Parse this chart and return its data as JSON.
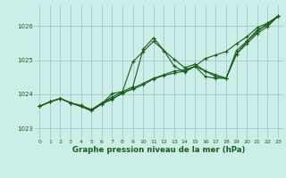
{
  "title": "Graphe pression niveau de la mer (hPa)",
  "bg_color": "#cceee8",
  "grid_color": "#aacccc",
  "line_color": "#1a5c1a",
  "xlim": [
    -0.5,
    23.5
  ],
  "ylim": [
    1022.7,
    1026.6
  ],
  "yticks": [
    1023,
    1024,
    1025,
    1026
  ],
  "xticks": [
    0,
    1,
    2,
    3,
    4,
    5,
    6,
    7,
    8,
    9,
    10,
    11,
    12,
    13,
    14,
    15,
    16,
    17,
    18,
    19,
    20,
    21,
    22,
    23
  ],
  "series": [
    [
      1023.65,
      1023.78,
      1023.88,
      1023.75,
      1023.68,
      1023.55,
      1023.72,
      1023.85,
      1024.05,
      1024.15,
      1024.28,
      1024.45,
      1024.55,
      1024.62,
      1024.68,
      1024.82,
      1025.05,
      1025.15,
      1025.25,
      1025.48,
      1025.68,
      1025.95,
      1026.08,
      1026.28
    ],
    [
      1023.65,
      1023.78,
      1023.88,
      1023.75,
      1023.65,
      1023.52,
      1023.72,
      1024.02,
      1024.08,
      1024.95,
      1025.25,
      1025.55,
      1025.28,
      1024.82,
      1024.65,
      1024.82,
      1024.52,
      1024.47,
      1024.47,
      1025.28,
      1025.55,
      1025.82,
      1026.08,
      1026.28
    ],
    [
      1023.65,
      1023.78,
      1023.88,
      1023.75,
      1023.65,
      1023.55,
      1023.75,
      1023.92,
      1024.08,
      1024.22,
      1025.32,
      1025.65,
      1025.28,
      1025.02,
      1024.78,
      1024.88,
      1024.68,
      1024.52,
      1024.47,
      1025.18,
      1025.55,
      1025.88,
      1026.02,
      1026.28
    ],
    [
      1023.65,
      1023.78,
      1023.88,
      1023.75,
      1023.65,
      1023.52,
      1023.72,
      1023.88,
      1024.02,
      1024.18,
      1024.32,
      1024.47,
      1024.57,
      1024.68,
      1024.72,
      1024.82,
      1024.68,
      1024.57,
      1024.47,
      1025.18,
      1025.48,
      1025.78,
      1025.98,
      1026.28
    ]
  ]
}
